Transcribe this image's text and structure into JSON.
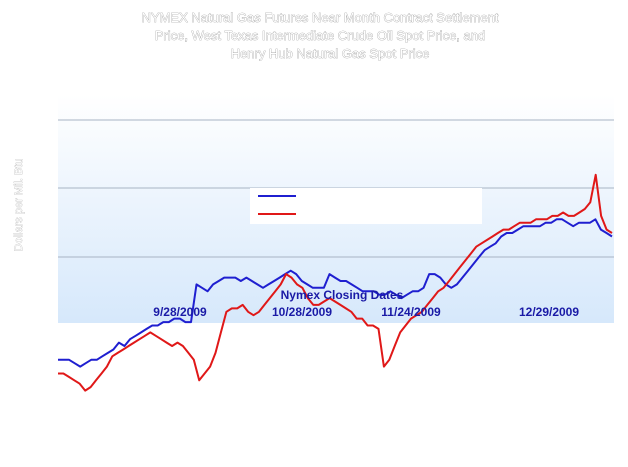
{
  "chart_data": {
    "type": "line",
    "title": [
      "NYMEX Natural Gas Futures Near Month Contract Settlement",
      "Price, West Texas Intermediate Crude Oil Spot Price, and",
      "Henry Hub Natural Gas Spot Price"
    ],
    "xlabel": "Nymex Closing Dates",
    "ylabel": "Dollars per Mil. Btu",
    "x_ticks": [
      "9/28/2009",
      "10/28/2009",
      "11/24/2009",
      "12/29/2009"
    ],
    "grid": true,
    "legend_placement": "center-right",
    "series": [
      {
        "color": "#1f1fd0",
        "values": [
          2.5,
          2.5,
          2.5,
          2.45,
          2.4,
          2.45,
          2.5,
          2.5,
          2.55,
          2.6,
          2.65,
          2.75,
          2.7,
          2.8,
          2.85,
          2.9,
          2.95,
          3.0,
          3.0,
          3.05,
          3.05,
          3.1,
          3.1,
          3.05,
          3.05,
          3.6,
          3.55,
          3.5,
          3.6,
          3.65,
          3.7,
          3.7,
          3.7,
          3.65,
          3.7,
          3.65,
          3.6,
          3.55,
          3.6,
          3.65,
          3.7,
          3.75,
          3.8,
          3.75,
          3.65,
          3.6,
          3.55,
          3.55,
          3.55,
          3.75,
          3.7,
          3.65,
          3.65,
          3.6,
          3.55,
          3.5,
          3.5,
          3.5,
          3.45,
          3.45,
          3.5,
          3.45,
          3.4,
          3.45,
          3.5,
          3.5,
          3.55,
          3.75,
          3.75,
          3.7,
          3.6,
          3.55,
          3.6,
          3.7,
          3.8,
          3.9,
          4.0,
          4.1,
          4.15,
          4.2,
          4.3,
          4.35,
          4.35,
          4.4,
          4.45,
          4.45,
          4.45,
          4.45,
          4.5,
          4.5,
          4.55,
          4.55,
          4.5,
          4.45,
          4.5,
          4.5,
          4.5,
          4.55,
          4.4,
          4.35,
          4.3
        ]
      },
      {
        "color": "#e01818",
        "values": [
          2.3,
          2.3,
          2.25,
          2.2,
          2.15,
          2.05,
          2.1,
          2.2,
          2.3,
          2.4,
          2.55,
          2.6,
          2.65,
          2.7,
          2.75,
          2.8,
          2.85,
          2.9,
          2.85,
          2.8,
          2.75,
          2.7,
          2.75,
          2.7,
          2.6,
          2.5,
          2.2,
          2.3,
          2.4,
          2.6,
          2.9,
          3.2,
          3.25,
          3.25,
          3.3,
          3.2,
          3.15,
          3.2,
          3.3,
          3.4,
          3.5,
          3.6,
          3.75,
          3.7,
          3.6,
          3.55,
          3.4,
          3.3,
          3.3,
          3.35,
          3.4,
          3.35,
          3.3,
          3.25,
          3.2,
          3.1,
          3.1,
          3.0,
          3.0,
          2.95,
          2.4,
          2.5,
          2.7,
          2.9,
          3.0,
          3.1,
          3.15,
          3.2,
          3.3,
          3.4,
          3.5,
          3.55,
          3.65,
          3.75,
          3.85,
          3.95,
          4.05,
          4.15,
          4.2,
          4.25,
          4.3,
          4.35,
          4.4,
          4.4,
          4.45,
          4.5,
          4.5,
          4.5,
          4.55,
          4.55,
          4.55,
          4.6,
          4.6,
          4.65,
          4.6,
          4.6,
          4.65,
          4.7,
          4.8,
          5.2,
          4.6,
          4.4,
          4.35
        ]
      }
    ]
  }
}
